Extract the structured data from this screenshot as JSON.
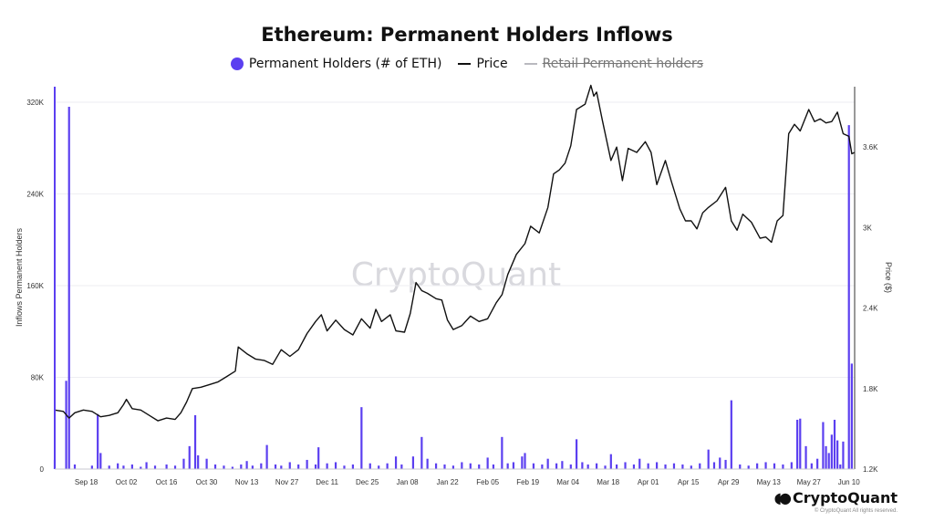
{
  "chart_data": {
    "type": "bar+line",
    "title": "Ethereum: Permanent Holders Inflows",
    "watermark": "CryptoQuant",
    "legend": [
      {
        "label": "Permanent Holders (# of ETH)",
        "marker": "dot",
        "color": "#5b3ff0"
      },
      {
        "label": "Price",
        "marker": "line",
        "color": "#111111"
      },
      {
        "label": "Retail Permanent holders",
        "marker": "line",
        "color": "#b9b9bf",
        "hidden": true
      }
    ],
    "ylabel_left": "Inflows Permanent Holders",
    "ylabel_right": "Price ($)",
    "y_left_ticks": [
      "0",
      "80K",
      "160K",
      "240K",
      "320K"
    ],
    "y_left_range": [
      0,
      320000
    ],
    "y_right_ticks": [
      "1.2K",
      "1.8K",
      "2.4K",
      "3K",
      "3.6K"
    ],
    "y_right_range": [
      1200,
      4050
    ],
    "x_ticks": [
      "Sep 18",
      "Oct 02",
      "Oct 16",
      "Oct 30",
      "Nov 13",
      "Nov 27",
      "Dec 11",
      "Dec 25",
      "Jan 08",
      "Jan 22",
      "Feb 05",
      "Feb 19",
      "Mar 04",
      "Mar 18",
      "Apr 01",
      "Apr 15",
      "Apr 29",
      "May 13",
      "May 27",
      "Jun 10"
    ],
    "x_start": "2023-09-07",
    "x_end": "2024-06-12",
    "grid": true,
    "series": [
      {
        "name": "Permanent Holders (# of ETH)",
        "kind": "bar",
        "color": "#5b3ff0",
        "values": [
          [
            "2023-09-07",
            8000
          ],
          [
            "2023-09-11",
            77000
          ],
          [
            "2023-09-12",
            316000
          ],
          [
            "2023-09-14",
            4000
          ],
          [
            "2023-09-20",
            3000
          ],
          [
            "2023-09-22",
            48000
          ],
          [
            "2023-09-23",
            14000
          ],
          [
            "2023-09-26",
            3000
          ],
          [
            "2023-09-29",
            5000
          ],
          [
            "2023-10-01",
            3000
          ],
          [
            "2023-10-04",
            4000
          ],
          [
            "2023-10-07",
            2000
          ],
          [
            "2023-10-09",
            6000
          ],
          [
            "2023-10-12",
            3000
          ],
          [
            "2023-10-16",
            4000
          ],
          [
            "2023-10-19",
            3000
          ],
          [
            "2023-10-22",
            9000
          ],
          [
            "2023-10-24",
            20000
          ],
          [
            "2023-10-26",
            47000
          ],
          [
            "2023-10-27",
            12000
          ],
          [
            "2023-10-30",
            9000
          ],
          [
            "2023-11-02",
            4000
          ],
          [
            "2023-11-05",
            3000
          ],
          [
            "2023-11-08",
            2000
          ],
          [
            "2023-11-11",
            4000
          ],
          [
            "2023-11-13",
            7000
          ],
          [
            "2023-11-15",
            3000
          ],
          [
            "2023-11-18",
            5000
          ],
          [
            "2023-11-20",
            21000
          ],
          [
            "2023-11-23",
            4000
          ],
          [
            "2023-11-25",
            3000
          ],
          [
            "2023-11-28",
            6000
          ],
          [
            "2023-12-01",
            4000
          ],
          [
            "2023-12-04",
            8000
          ],
          [
            "2023-12-07",
            4000
          ],
          [
            "2023-12-08",
            19000
          ],
          [
            "2023-12-11",
            5000
          ],
          [
            "2023-12-14",
            6000
          ],
          [
            "2023-12-17",
            3000
          ],
          [
            "2023-12-20",
            4000
          ],
          [
            "2023-12-23",
            54000
          ],
          [
            "2023-12-26",
            5000
          ],
          [
            "2023-12-29",
            3000
          ],
          [
            "2024-01-01",
            5000
          ],
          [
            "2024-01-04",
            11000
          ],
          [
            "2024-01-06",
            4000
          ],
          [
            "2024-01-10",
            11000
          ],
          [
            "2024-01-13",
            28000
          ],
          [
            "2024-01-15",
            9000
          ],
          [
            "2024-01-18",
            5000
          ],
          [
            "2024-01-21",
            4000
          ],
          [
            "2024-01-24",
            3000
          ],
          [
            "2024-01-27",
            6000
          ],
          [
            "2024-01-30",
            5000
          ],
          [
            "2024-02-02",
            4000
          ],
          [
            "2024-02-05",
            10000
          ],
          [
            "2024-02-07",
            4000
          ],
          [
            "2024-02-10",
            28000
          ],
          [
            "2024-02-12",
            5000
          ],
          [
            "2024-02-14",
            6000
          ],
          [
            "2024-02-17",
            11000
          ],
          [
            "2024-02-18",
            14000
          ],
          [
            "2024-02-21",
            5000
          ],
          [
            "2024-02-24",
            4000
          ],
          [
            "2024-02-26",
            9000
          ],
          [
            "2024-02-29",
            5000
          ],
          [
            "2024-03-02",
            7000
          ],
          [
            "2024-03-05",
            4000
          ],
          [
            "2024-03-07",
            26000
          ],
          [
            "2024-03-09",
            6000
          ],
          [
            "2024-03-11",
            4000
          ],
          [
            "2024-03-14",
            5000
          ],
          [
            "2024-03-17",
            3000
          ],
          [
            "2024-03-19",
            13000
          ],
          [
            "2024-03-21",
            4000
          ],
          [
            "2024-03-24",
            6000
          ],
          [
            "2024-03-27",
            4000
          ],
          [
            "2024-03-29",
            9000
          ],
          [
            "2024-04-01",
            5000
          ],
          [
            "2024-04-04",
            6000
          ],
          [
            "2024-04-07",
            4000
          ],
          [
            "2024-04-10",
            5000
          ],
          [
            "2024-04-13",
            4000
          ],
          [
            "2024-04-16",
            3000
          ],
          [
            "2024-04-19",
            5000
          ],
          [
            "2024-04-22",
            17000
          ],
          [
            "2024-04-24",
            6000
          ],
          [
            "2024-04-26",
            10000
          ],
          [
            "2024-04-28",
            8000
          ],
          [
            "2024-04-30",
            60000
          ],
          [
            "2024-05-03",
            4000
          ],
          [
            "2024-05-06",
            3000
          ],
          [
            "2024-05-09",
            5000
          ],
          [
            "2024-05-12",
            6000
          ],
          [
            "2024-05-15",
            5000
          ],
          [
            "2024-05-18",
            4000
          ],
          [
            "2024-05-21",
            6000
          ],
          [
            "2024-05-23",
            43000
          ],
          [
            "2024-05-24",
            44000
          ],
          [
            "2024-05-26",
            20000
          ],
          [
            "2024-05-28",
            5000
          ],
          [
            "2024-05-30",
            9000
          ],
          [
            "2024-06-01",
            41000
          ],
          [
            "2024-06-02",
            20000
          ],
          [
            "2024-06-03",
            14000
          ],
          [
            "2024-06-04",
            30000
          ],
          [
            "2024-06-05",
            43000
          ],
          [
            "2024-06-06",
            25000
          ],
          [
            "2024-06-07",
            4000
          ],
          [
            "2024-06-08",
            24000
          ],
          [
            "2024-06-10",
            300000
          ],
          [
            "2024-06-11",
            92000
          ]
        ]
      },
      {
        "name": "Price",
        "kind": "line",
        "color": "#111111",
        "values": [
          [
            "2023-09-07",
            1640
          ],
          [
            "2023-09-10",
            1630
          ],
          [
            "2023-09-12",
            1580
          ],
          [
            "2023-09-14",
            1620
          ],
          [
            "2023-09-17",
            1640
          ],
          [
            "2023-09-20",
            1630
          ],
          [
            "2023-09-23",
            1590
          ],
          [
            "2023-09-26",
            1600
          ],
          [
            "2023-09-29",
            1620
          ],
          [
            "2023-10-01",
            1680
          ],
          [
            "2023-10-02",
            1720
          ],
          [
            "2023-10-04",
            1650
          ],
          [
            "2023-10-07",
            1640
          ],
          [
            "2023-10-10",
            1600
          ],
          [
            "2023-10-13",
            1560
          ],
          [
            "2023-10-16",
            1580
          ],
          [
            "2023-10-19",
            1570
          ],
          [
            "2023-10-21",
            1620
          ],
          [
            "2023-10-23",
            1700
          ],
          [
            "2023-10-25",
            1800
          ],
          [
            "2023-10-28",
            1810
          ],
          [
            "2023-10-31",
            1830
          ],
          [
            "2023-11-03",
            1850
          ],
          [
            "2023-11-06",
            1890
          ],
          [
            "2023-11-09",
            1930
          ],
          [
            "2023-11-10",
            2110
          ],
          [
            "2023-11-13",
            2060
          ],
          [
            "2023-11-16",
            2020
          ],
          [
            "2023-11-19",
            2010
          ],
          [
            "2023-11-22",
            1980
          ],
          [
            "2023-11-25",
            2090
          ],
          [
            "2023-11-28",
            2040
          ],
          [
            "2023-12-01",
            2090
          ],
          [
            "2023-12-04",
            2210
          ],
          [
            "2023-12-07",
            2300
          ],
          [
            "2023-12-09",
            2350
          ],
          [
            "2023-12-11",
            2230
          ],
          [
            "2023-12-14",
            2310
          ],
          [
            "2023-12-17",
            2240
          ],
          [
            "2023-12-20",
            2200
          ],
          [
            "2023-12-23",
            2320
          ],
          [
            "2023-12-26",
            2250
          ],
          [
            "2023-12-28",
            2390
          ],
          [
            "2023-12-30",
            2300
          ],
          [
            "2024-01-02",
            2350
          ],
          [
            "2024-01-04",
            2230
          ],
          [
            "2024-01-07",
            2220
          ],
          [
            "2024-01-09",
            2360
          ],
          [
            "2024-01-11",
            2590
          ],
          [
            "2024-01-13",
            2530
          ],
          [
            "2024-01-15",
            2510
          ],
          [
            "2024-01-18",
            2470
          ],
          [
            "2024-01-20",
            2460
          ],
          [
            "2024-01-22",
            2310
          ],
          [
            "2024-01-24",
            2240
          ],
          [
            "2024-01-27",
            2270
          ],
          [
            "2024-01-30",
            2340
          ],
          [
            "2024-02-02",
            2300
          ],
          [
            "2024-02-05",
            2320
          ],
          [
            "2024-02-08",
            2440
          ],
          [
            "2024-02-10",
            2500
          ],
          [
            "2024-02-12",
            2650
          ],
          [
            "2024-02-15",
            2800
          ],
          [
            "2024-02-18",
            2880
          ],
          [
            "2024-02-20",
            3010
          ],
          [
            "2024-02-23",
            2960
          ],
          [
            "2024-02-26",
            3150
          ],
          [
            "2024-02-28",
            3400
          ],
          [
            "2024-03-01",
            3430
          ],
          [
            "2024-03-03",
            3480
          ],
          [
            "2024-03-05",
            3610
          ],
          [
            "2024-03-07",
            3880
          ],
          [
            "2024-03-10",
            3920
          ],
          [
            "2024-03-12",
            4060
          ],
          [
            "2024-03-13",
            3980
          ],
          [
            "2024-03-14",
            4010
          ],
          [
            "2024-03-16",
            3800
          ],
          [
            "2024-03-19",
            3500
          ],
          [
            "2024-03-21",
            3600
          ],
          [
            "2024-03-23",
            3350
          ],
          [
            "2024-03-25",
            3590
          ],
          [
            "2024-03-28",
            3560
          ],
          [
            "2024-03-31",
            3640
          ],
          [
            "2024-04-02",
            3560
          ],
          [
            "2024-04-04",
            3320
          ],
          [
            "2024-04-07",
            3500
          ],
          [
            "2024-04-09",
            3350
          ],
          [
            "2024-04-12",
            3140
          ],
          [
            "2024-04-14",
            3050
          ],
          [
            "2024-04-16",
            3050
          ],
          [
            "2024-04-18",
            2990
          ],
          [
            "2024-04-20",
            3110
          ],
          [
            "2024-04-22",
            3150
          ],
          [
            "2024-04-25",
            3200
          ],
          [
            "2024-04-28",
            3300
          ],
          [
            "2024-04-30",
            3050
          ],
          [
            "2024-05-02",
            2980
          ],
          [
            "2024-05-04",
            3100
          ],
          [
            "2024-05-07",
            3040
          ],
          [
            "2024-05-10",
            2920
          ],
          [
            "2024-05-12",
            2930
          ],
          [
            "2024-05-14",
            2890
          ],
          [
            "2024-05-16",
            3050
          ],
          [
            "2024-05-18",
            3090
          ],
          [
            "2024-05-20",
            3700
          ],
          [
            "2024-05-22",
            3770
          ],
          [
            "2024-05-24",
            3720
          ],
          [
            "2024-05-27",
            3880
          ],
          [
            "2024-05-29",
            3790
          ],
          [
            "2024-05-31",
            3810
          ],
          [
            "2024-06-02",
            3780
          ],
          [
            "2024-06-04",
            3790
          ],
          [
            "2024-06-06",
            3860
          ],
          [
            "2024-06-08",
            3700
          ],
          [
            "2024-06-10",
            3680
          ],
          [
            "2024-06-11",
            3550
          ],
          [
            "2024-06-12",
            3560
          ]
        ]
      }
    ]
  },
  "brand": {
    "name": "CryptoQuant",
    "rights": "© CryptoQuant All rights reserved."
  }
}
